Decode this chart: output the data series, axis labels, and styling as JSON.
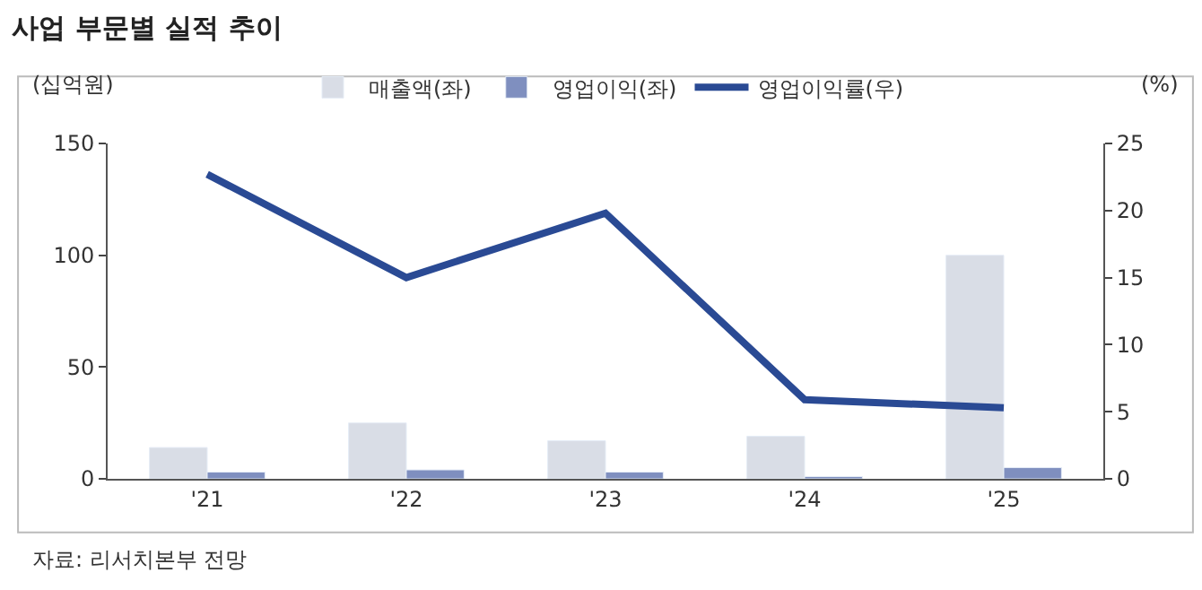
{
  "chart_data": {
    "type": "bar",
    "title": "사업 부문별 실적 추이",
    "ylabel": "(십억원)",
    "y2label": "(%)",
    "categories": [
      "'21",
      "'22",
      "'23",
      "'24",
      "'25"
    ],
    "series": [
      {
        "name": "매출액(좌)",
        "color": "#d9dde6",
        "values": [
          14,
          25,
          17,
          19,
          100
        ]
      },
      {
        "name": "영업이익(좌)",
        "color": "#7f8fbf",
        "values": [
          3,
          4,
          3,
          1,
          5
        ]
      },
      {
        "name": "영업이익률(우)",
        "type": "line",
        "axis": "y2",
        "color": "#2a4a94",
        "values": [
          22.7,
          15,
          19.8,
          5.9,
          5.3
        ]
      }
    ],
    "ylim": [
      0,
      150
    ],
    "yticks": [
      0,
      50,
      100,
      150
    ],
    "y2lim": [
      0,
      25
    ],
    "y2ticks": [
      0,
      5,
      10,
      15,
      20,
      25
    ],
    "legend": "top",
    "marker": "none",
    "line_style": "solid",
    "annotations": [
      "자료: 리서치본부 전망"
    ]
  }
}
